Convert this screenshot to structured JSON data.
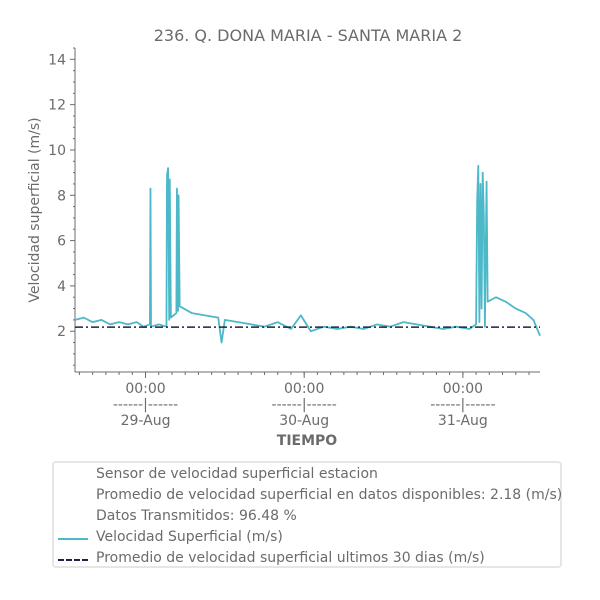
{
  "colors": {
    "series_line": "#4db8c8",
    "average_line": "#1f2140",
    "text": "#6b6b6b",
    "axis": "#6b6b6b",
    "legend_border": "#e6e6e6"
  },
  "legend": {
    "info_lines": [
      "Sensor de velocidad superficial estacion",
      "Promedio de velocidad superficial en datos disponibles: 2.18 (m/s)",
      "Datos Transmitidos: 96.48 %"
    ],
    "series_label": "Velocidad Superficial (m/s)",
    "average_label": "Promedio de velocidad superficial ultimos 30 dias (m/s)"
  },
  "chart_data": {
    "type": "line",
    "title": "236. Q. DONA MARIA - SANTA MARIA 2",
    "xlabel": "TIEMPO",
    "ylabel": "Velocidad superficial (m/s)",
    "ylim": [
      0.2,
      14.5
    ],
    "yticks": [
      2,
      4,
      6,
      8,
      10,
      12,
      14
    ],
    "xlim": [
      "2024-08-28 13:20",
      "2024-08-31 11:40"
    ],
    "xticks": [
      {
        "at": "2024-08-29 00:00",
        "label_top": "00:00",
        "label_mid": "------|------",
        "label_bottom": "29-Aug"
      },
      {
        "at": "2024-08-30 00:00",
        "label_top": "00:00",
        "label_mid": "------|------",
        "label_bottom": "30-Aug"
      },
      {
        "at": "2024-08-31 00:00",
        "label_top": "00:00",
        "label_mid": "------|------",
        "label_bottom": "31-Aug"
      }
    ],
    "grid": false,
    "legend_position": "below",
    "average": 2.18,
    "series": [
      {
        "name": "Velocidad Superficial (m/s)",
        "points": [
          [
            "2024-08-28 13:20",
            2.5
          ],
          [
            "2024-08-28 14:40",
            2.6
          ],
          [
            "2024-08-28 16:00",
            2.4
          ],
          [
            "2024-08-28 17:20",
            2.5
          ],
          [
            "2024-08-28 18:40",
            2.3
          ],
          [
            "2024-08-28 20:00",
            2.4
          ],
          [
            "2024-08-28 21:20",
            2.3
          ],
          [
            "2024-08-28 22:40",
            2.4
          ],
          [
            "2024-08-28 23:40",
            2.2
          ],
          [
            "2024-08-29 00:40",
            2.3
          ],
          [
            "2024-08-29 00:45",
            8.3
          ],
          [
            "2024-08-29 00:50",
            2.2
          ],
          [
            "2024-08-29 02:00",
            2.3
          ],
          [
            "2024-08-29 03:10",
            2.2
          ],
          [
            "2024-08-29 03:15",
            8.9
          ],
          [
            "2024-08-29 03:25",
            9.2
          ],
          [
            "2024-08-29 03:35",
            2.5
          ],
          [
            "2024-08-29 03:40",
            8.7
          ],
          [
            "2024-08-29 03:50",
            2.6
          ],
          [
            "2024-08-29 04:40",
            2.8
          ],
          [
            "2024-08-29 04:45",
            8.3
          ],
          [
            "2024-08-29 04:55",
            2.9
          ],
          [
            "2024-08-29 05:00",
            8.0
          ],
          [
            "2024-08-29 05:10",
            3.1
          ],
          [
            "2024-08-29 07:00",
            2.8
          ],
          [
            "2024-08-29 09:00",
            2.7
          ],
          [
            "2024-08-29 11:00",
            2.6
          ],
          [
            "2024-08-29 11:30",
            1.5
          ],
          [
            "2024-08-29 12:00",
            2.5
          ],
          [
            "2024-08-29 14:00",
            2.4
          ],
          [
            "2024-08-29 16:00",
            2.3
          ],
          [
            "2024-08-29 18:00",
            2.2
          ],
          [
            "2024-08-29 20:00",
            2.4
          ],
          [
            "2024-08-29 22:00",
            2.1
          ],
          [
            "2024-08-29 23:30",
            2.7
          ],
          [
            "2024-08-30 01:00",
            2.0
          ],
          [
            "2024-08-30 03:00",
            2.2
          ],
          [
            "2024-08-30 05:00",
            2.1
          ],
          [
            "2024-08-30 07:00",
            2.2
          ],
          [
            "2024-08-30 09:00",
            2.1
          ],
          [
            "2024-08-30 11:00",
            2.3
          ],
          [
            "2024-08-30 13:00",
            2.2
          ],
          [
            "2024-08-30 15:00",
            2.4
          ],
          [
            "2024-08-30 17:00",
            2.3
          ],
          [
            "2024-08-30 19:00",
            2.2
          ],
          [
            "2024-08-30 21:00",
            2.1
          ],
          [
            "2024-08-30 23:00",
            2.2
          ],
          [
            "2024-08-31 01:00",
            2.1
          ],
          [
            "2024-08-31 02:00",
            2.3
          ],
          [
            "2024-08-31 02:10",
            7.8
          ],
          [
            "2024-08-31 02:20",
            9.3
          ],
          [
            "2024-08-31 02:30",
            2.4
          ],
          [
            "2024-08-31 02:40",
            8.5
          ],
          [
            "2024-08-31 02:50",
            3.0
          ],
          [
            "2024-08-31 03:00",
            9.0
          ],
          [
            "2024-08-31 03:10",
            7.2
          ],
          [
            "2024-08-31 03:20",
            2.2
          ],
          [
            "2024-08-31 03:35",
            8.6
          ],
          [
            "2024-08-31 03:45",
            3.3
          ],
          [
            "2024-08-31 05:00",
            3.5
          ],
          [
            "2024-08-31 06:30",
            3.3
          ],
          [
            "2024-08-31 08:00",
            3.0
          ],
          [
            "2024-08-31 09:30",
            2.8
          ],
          [
            "2024-08-31 10:40",
            2.5
          ],
          [
            "2024-08-31 11:40",
            1.8
          ]
        ]
      },
      {
        "name": "Promedio de velocidad superficial ultimos 30 dias (m/s)",
        "points": [
          [
            "2024-08-28 13:20",
            2.18
          ],
          [
            "2024-08-31 11:40",
            2.18
          ]
        ]
      }
    ]
  }
}
